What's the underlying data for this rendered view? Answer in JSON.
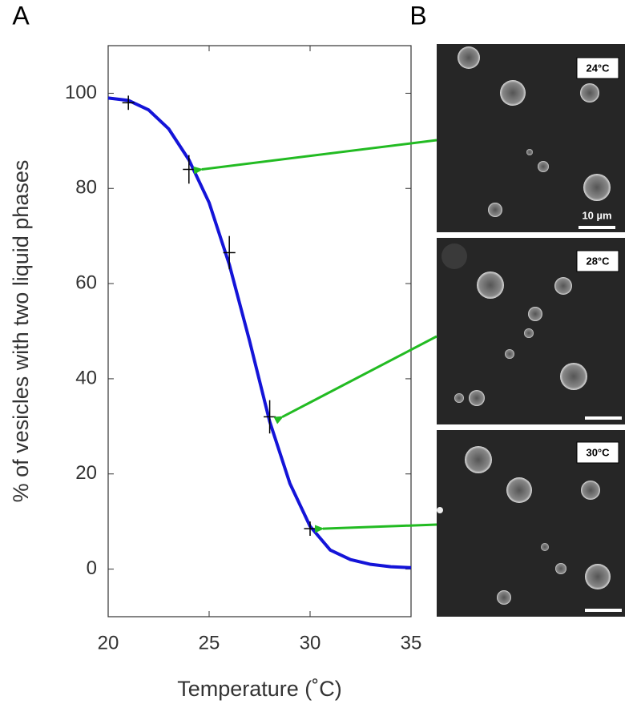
{
  "panel_labels": [
    "A",
    "B"
  ],
  "chart_data": {
    "type": "line",
    "xlabel": "Temperature (˚C)",
    "ylabel": "% of vesicles with two liquid phases",
    "xlim": [
      20,
      35
    ],
    "ylim": [
      -10,
      110
    ],
    "xticks": [
      20,
      25,
      30,
      35
    ],
    "yticks": [
      0,
      20,
      40,
      60,
      80,
      100
    ],
    "series": [
      {
        "color": "#1414d8",
        "x": [
          20,
          21,
          22,
          23,
          24,
          25,
          26,
          27,
          28,
          29,
          30,
          31,
          32,
          33,
          34,
          35
        ],
        "values": [
          99,
          98.5,
          96.5,
          92.5,
          86,
          77,
          64,
          48,
          31,
          18,
          9,
          4,
          2,
          1,
          0.5,
          0.3
        ]
      }
    ],
    "points": {
      "color": "#000000",
      "x": [
        21,
        24,
        26,
        28,
        30
      ],
      "values": [
        98,
        84,
        66.5,
        32,
        8.5
      ],
      "yerr": [
        1.5,
        3,
        3.5,
        3.5,
        1.5
      ],
      "xerr": [
        0.3,
        0.3,
        0.3,
        0.3,
        0.3
      ]
    }
  },
  "images": [
    {
      "label": "24°C",
      "scale_bar": "10 µm"
    },
    {
      "label": "28°C"
    },
    {
      "label": "30°C"
    }
  ]
}
